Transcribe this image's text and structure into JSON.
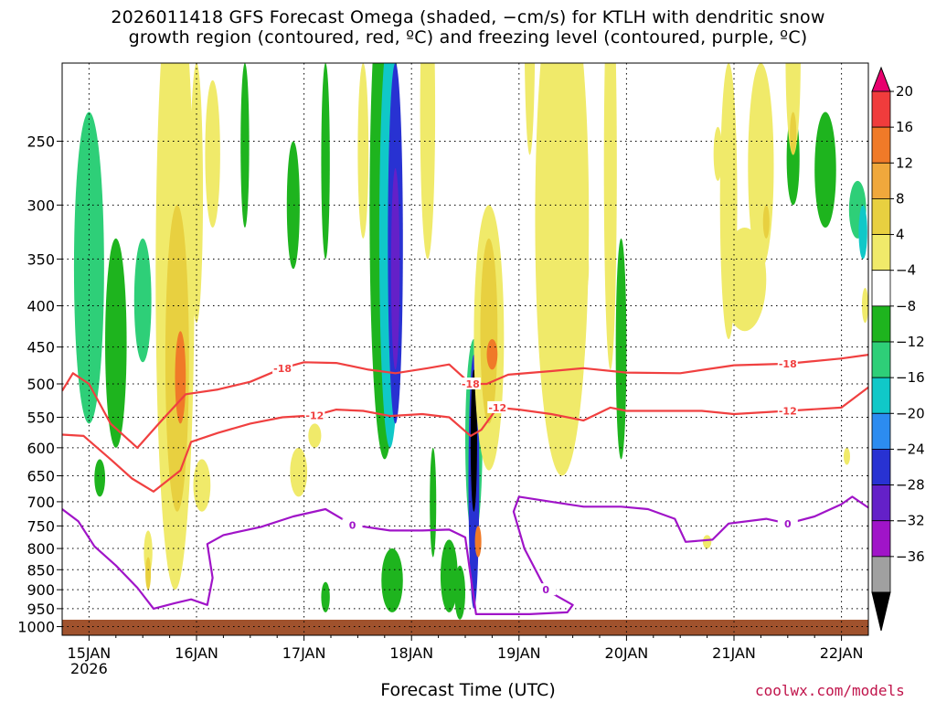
{
  "title_lines": [
    "2026011418 GFS Forecast Omega (shaded, −cm/s) for KTLH with dendritic snow",
    "growth region (contoured, red, ºC) and freezing level (contoured, purple, ºC)"
  ],
  "credit": "coolwx.com/models",
  "chart_data": {
    "type": "heatmap",
    "xlabel": "Forecast Time (UTC)",
    "ylabel": "",
    "x_ticks": [
      "15JAN",
      "16JAN",
      "17JAN",
      "18JAN",
      "19JAN",
      "20JAN",
      "21JAN",
      "22JAN"
    ],
    "x_tick_sublabel": "2026",
    "x_range_days": [
      14.75,
      22.25
    ],
    "y_ticks": [
      250,
      300,
      350,
      400,
      450,
      500,
      550,
      600,
      650,
      700,
      750,
      800,
      850,
      900,
      950,
      1000
    ],
    "y_range_hpa": [
      200,
      1025
    ],
    "y_log": true,
    "grid": true,
    "colorbar": {
      "labels": [
        "20",
        "16",
        "12",
        "8",
        "4",
        "−4",
        "−8",
        "−12",
        "−16",
        "−20",
        "−24",
        "−28",
        "−32",
        "−36"
      ],
      "colors": [
        "#e8006e",
        "#f03c3c",
        "#f07a28",
        "#f0a83c",
        "#e8d040",
        "#f0ea6a",
        "#ffffff",
        "#1eb41e",
        "#2ecf78",
        "#10c8c8",
        "#2c8cf0",
        "#2832d2",
        "#6420c8",
        "#a014c8",
        "#a0a0a0",
        "#000000"
      ]
    },
    "contours": [
      {
        "label": "-18",
        "color": "#f04040",
        "points": [
          [
            14.75,
            510
          ],
          [
            14.85,
            485
          ],
          [
            15.0,
            500
          ],
          [
            15.2,
            560
          ],
          [
            15.45,
            600
          ],
          [
            15.65,
            560
          ],
          [
            15.9,
            515
          ],
          [
            16.2,
            508
          ],
          [
            16.5,
            497
          ],
          [
            16.8,
            478
          ],
          [
            17.0,
            470
          ],
          [
            17.3,
            471
          ],
          [
            17.6,
            480
          ],
          [
            17.85,
            485
          ],
          [
            18.15,
            478
          ],
          [
            18.35,
            473
          ],
          [
            18.55,
            500
          ],
          [
            18.7,
            500
          ],
          [
            18.9,
            487
          ],
          [
            19.3,
            482
          ],
          [
            19.6,
            478
          ],
          [
            20.0,
            484
          ],
          [
            20.5,
            485
          ],
          [
            21.0,
            474
          ],
          [
            21.5,
            472
          ],
          [
            22.0,
            465
          ],
          [
            22.25,
            460
          ]
        ]
      },
      {
        "label": "-12",
        "color": "#f04040",
        "points": [
          [
            14.75,
            578
          ],
          [
            14.95,
            580
          ],
          [
            15.2,
            620
          ],
          [
            15.4,
            655
          ],
          [
            15.6,
            680
          ],
          [
            15.85,
            640
          ],
          [
            15.95,
            590
          ],
          [
            16.2,
            575
          ],
          [
            16.5,
            560
          ],
          [
            16.8,
            550
          ],
          [
            17.1,
            547
          ],
          [
            17.3,
            538
          ],
          [
            17.55,
            540
          ],
          [
            17.8,
            548
          ],
          [
            18.1,
            545
          ],
          [
            18.35,
            550
          ],
          [
            18.55,
            580
          ],
          [
            18.65,
            570
          ],
          [
            18.8,
            535
          ],
          [
            19.0,
            538
          ],
          [
            19.3,
            545
          ],
          [
            19.6,
            555
          ],
          [
            19.85,
            535
          ],
          [
            20.0,
            540
          ],
          [
            20.4,
            540
          ],
          [
            20.7,
            540
          ],
          [
            21.0,
            545
          ],
          [
            21.5,
            540
          ],
          [
            22.0,
            535
          ],
          [
            22.25,
            505
          ]
        ]
      },
      {
        "label": "0",
        "color": "#a014c8",
        "points": [
          [
            14.75,
            715
          ],
          [
            14.9,
            740
          ],
          [
            15.05,
            795
          ],
          [
            15.25,
            840
          ],
          [
            15.45,
            895
          ],
          [
            15.6,
            950
          ],
          [
            15.8,
            935
          ],
          [
            15.95,
            925
          ],
          [
            16.1,
            940
          ],
          [
            16.15,
            870
          ],
          [
            16.1,
            790
          ],
          [
            16.25,
            770
          ],
          [
            16.6,
            752
          ],
          [
            16.9,
            730
          ],
          [
            17.2,
            715
          ],
          [
            17.45,
            748
          ],
          [
            17.8,
            760
          ],
          [
            18.1,
            760
          ],
          [
            18.35,
            758
          ],
          [
            18.5,
            775
          ],
          [
            18.6,
            965
          ],
          [
            18.8,
            965
          ],
          [
            19.1,
            965
          ],
          [
            19.45,
            960
          ],
          [
            19.5,
            940
          ],
          [
            19.25,
            900
          ],
          [
            19.05,
            800
          ],
          [
            18.95,
            720
          ],
          [
            19.0,
            690
          ],
          [
            19.3,
            700
          ],
          [
            19.6,
            710
          ],
          [
            19.95,
            710
          ],
          [
            20.2,
            715
          ],
          [
            20.45,
            735
          ],
          [
            20.55,
            785
          ],
          [
            20.8,
            780
          ],
          [
            20.95,
            745
          ],
          [
            21.3,
            735
          ],
          [
            21.5,
            745
          ],
          [
            21.75,
            730
          ],
          [
            22.0,
            705
          ],
          [
            22.1,
            690
          ],
          [
            22.25,
            712
          ]
        ]
      }
    ]
  }
}
